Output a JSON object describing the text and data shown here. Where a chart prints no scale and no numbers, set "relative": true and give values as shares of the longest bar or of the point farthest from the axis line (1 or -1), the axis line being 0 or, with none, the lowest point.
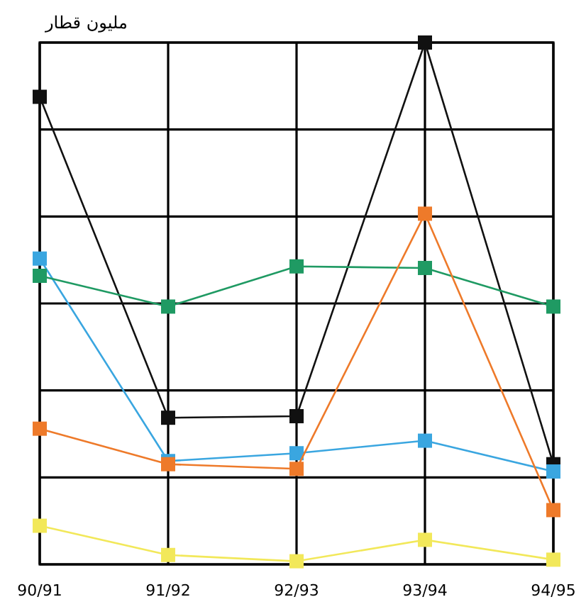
{
  "chart_data": {
    "type": "line",
    "relative": true,
    "ylabel": "مليون قطار",
    "categories": [
      "90/91",
      "91/92",
      "92/93",
      "93/94",
      "94/95"
    ],
    "grid": true,
    "marker": "square",
    "line_style": "solid",
    "series": [
      {
        "color": "#111111",
        "values": [
          0.896,
          0.281,
          0.284,
          1,
          0.192
        ]
      },
      {
        "color": "#3aa6e0",
        "values": [
          0.586,
          0.198,
          0.213,
          0.237,
          0.178
        ]
      },
      {
        "color": "#1f9a63",
        "values": [
          0.553,
          0.494,
          0.571,
          0.568,
          0.494
        ]
      },
      {
        "color": "#ee7a2a",
        "values": [
          0.26,
          0.192,
          0.183,
          0.672,
          0.104
        ]
      },
      {
        "color": "#f2e85a",
        "values": [
          0.074,
          0.018,
          0.006,
          0.047,
          0.009
        ]
      }
    ]
  }
}
